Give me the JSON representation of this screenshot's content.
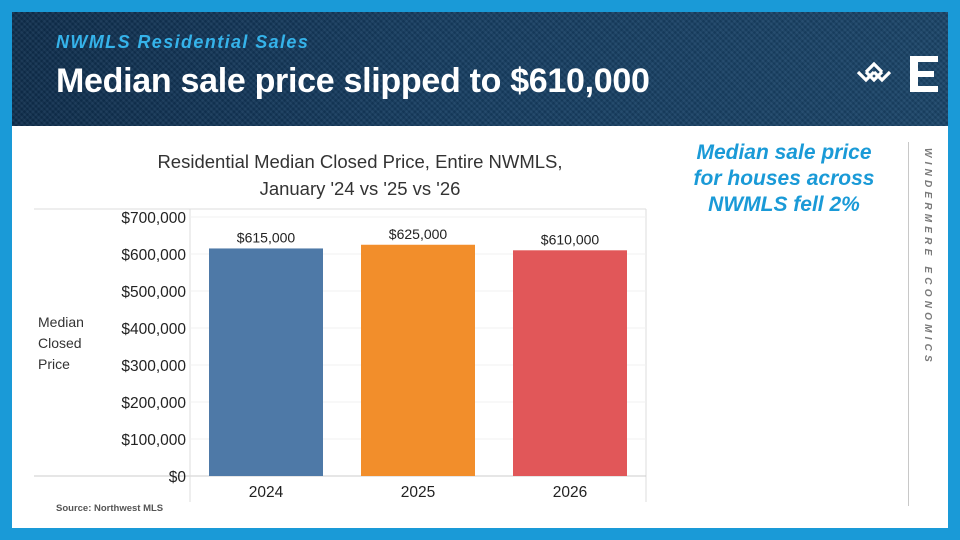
{
  "header": {
    "subtitle": "NWMLS Residential Sales",
    "headline": "Median sale price slipped to $610,000"
  },
  "callout": {
    "lines": [
      "Median sale price",
      "for houses across",
      "NWMLS fell 2%"
    ]
  },
  "brand": {
    "text": "WINDERMERE ECONOMICS"
  },
  "source": "Source: Northwest MLS",
  "colors": {
    "frame": "#1a9ad7",
    "accent": "#35b3ea",
    "bar_2024": "#4e79a7",
    "bar_2025": "#f28e2b",
    "bar_2026": "#e15759"
  },
  "chart_data": {
    "type": "bar",
    "title": "Residential Median Closed Price, Entire NWMLS,",
    "title_line2": "January '24 vs '25 vs '26",
    "categories": [
      "2024",
      "2025",
      "2026"
    ],
    "values": [
      615000,
      625000,
      610000
    ],
    "data_labels": [
      "$615,000",
      "$625,000",
      "$610,000"
    ],
    "ylabel_lines": [
      "Median",
      "Closed",
      "Price"
    ],
    "yticks": [
      0,
      100000,
      200000,
      300000,
      400000,
      500000,
      600000,
      700000
    ],
    "ytick_labels": [
      "$0",
      "$100,000",
      "$200,000",
      "$300,000",
      "$400,000",
      "$500,000",
      "$600,000",
      "$700,000"
    ],
    "ylim": [
      0,
      700000
    ],
    "grid": true
  }
}
